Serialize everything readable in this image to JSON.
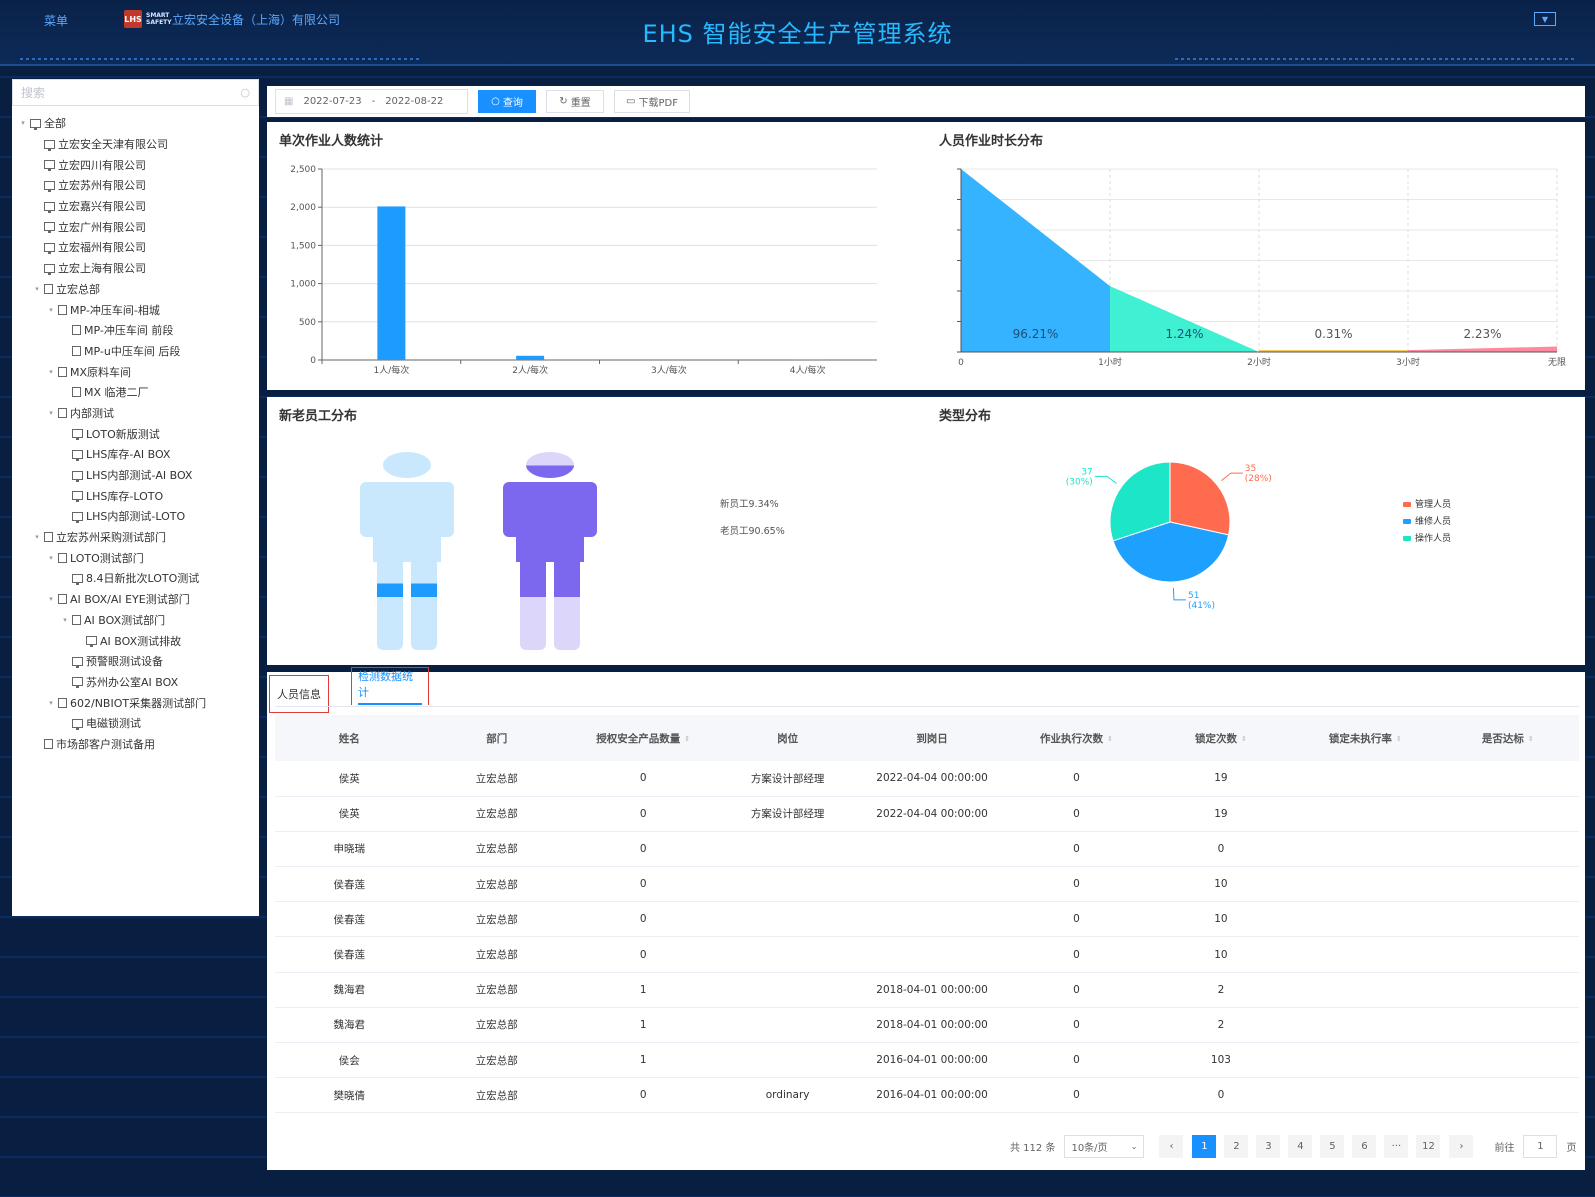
{
  "header": {
    "menu_label": "菜单",
    "company": "立宏安全设备（上海）有限公司",
    "title": "EHS 智能安全生产管理系统",
    "logo_mark": "LHS",
    "logo_text": "SMART SAFETY"
  },
  "sidebar": {
    "search_placeholder": "搜索",
    "tree": [
      {
        "label": "全部",
        "level": 0,
        "caret": "▾",
        "icon": "monitor"
      },
      {
        "label": "立宏安全天津有限公司",
        "level": 1,
        "caret": "",
        "icon": "monitor"
      },
      {
        "label": "立宏四川有限公司",
        "level": 1,
        "caret": "",
        "icon": "monitor"
      },
      {
        "label": "立宏苏州有限公司",
        "level": 1,
        "caret": "",
        "icon": "monitor"
      },
      {
        "label": "立宏嘉兴有限公司",
        "level": 1,
        "caret": "",
        "icon": "monitor"
      },
      {
        "label": "立宏广州有限公司",
        "level": 1,
        "caret": "",
        "icon": "monitor"
      },
      {
        "label": "立宏福州有限公司",
        "level": 1,
        "caret": "",
        "icon": "monitor"
      },
      {
        "label": "立宏上海有限公司",
        "level": 1,
        "caret": "",
        "icon": "monitor"
      },
      {
        "label": "立宏总部",
        "level": 1,
        "caret": "▾",
        "icon": "doc"
      },
      {
        "label": "MP-冲压车间-相城",
        "level": 2,
        "caret": "▾",
        "icon": "doc"
      },
      {
        "label": "MP-冲压车间 前段",
        "level": 3,
        "caret": "",
        "icon": "doc"
      },
      {
        "label": "MP-u中压车间 后段",
        "level": 3,
        "caret": "",
        "icon": "doc"
      },
      {
        "label": "MX原料车间",
        "level": 2,
        "caret": "▾",
        "icon": "doc"
      },
      {
        "label": "MX 临港二厂",
        "level": 3,
        "caret": "",
        "icon": "doc"
      },
      {
        "label": "内部测试",
        "level": 2,
        "caret": "▾",
        "icon": "doc"
      },
      {
        "label": "LOTO新版测试",
        "level": 3,
        "caret": "",
        "icon": "monitor"
      },
      {
        "label": "LHS库存-AI BOX",
        "level": 3,
        "caret": "",
        "icon": "monitor"
      },
      {
        "label": "LHS内部测试-AI BOX",
        "level": 3,
        "caret": "",
        "icon": "monitor"
      },
      {
        "label": "LHS库存-LOTO",
        "level": 3,
        "caret": "",
        "icon": "monitor"
      },
      {
        "label": "LHS内部测试-LOTO",
        "level": 3,
        "caret": "",
        "icon": "monitor"
      },
      {
        "label": "立宏苏州采购测试部门",
        "level": 1,
        "caret": "▾",
        "icon": "doc"
      },
      {
        "label": "LOTO测试部门",
        "level": 2,
        "caret": "▾",
        "icon": "doc"
      },
      {
        "label": "8.4日新批次LOTO测试",
        "level": 3,
        "caret": "",
        "icon": "monitor"
      },
      {
        "label": "AI BOX/AI EYE测试部门",
        "level": 2,
        "caret": "▾",
        "icon": "doc"
      },
      {
        "label": "AI BOX测试部门",
        "level": 3,
        "caret": "▾",
        "icon": "doc"
      },
      {
        "label": "AI BOX测试排故",
        "level": 4,
        "caret": "",
        "icon": "monitor"
      },
      {
        "label": "预警眼测试设备",
        "level": 3,
        "caret": "",
        "icon": "monitor"
      },
      {
        "label": "苏州办公室AI BOX",
        "level": 3,
        "caret": "",
        "icon": "monitor"
      },
      {
        "label": "602/NBIOT采集器测试部门",
        "level": 2,
        "caret": "▾",
        "icon": "doc"
      },
      {
        "label": "电磁锁测试",
        "level": 3,
        "caret": "",
        "icon": "monitor"
      },
      {
        "label": "市场部客户测试备用",
        "level": 1,
        "caret": "",
        "icon": "doc"
      }
    ]
  },
  "toolbar": {
    "date_start": "2022-07-23",
    "date_sep": "-",
    "date_end": "2022-08-22",
    "query_label": "查询",
    "reset_label": "重置",
    "pdf_label": "下载PDF"
  },
  "panels": {
    "single_job": "单次作业人数统计",
    "duration": "人员作业时长分布",
    "new_old": "新老员工分布",
    "type_dist": "类型分布"
  },
  "chart_data": [
    {
      "type": "bar",
      "title": "单次作业人数统计",
      "categories": [
        "1人/每次",
        "2人/每次",
        "3人/每次",
        "4人/每次"
      ],
      "values": [
        2010,
        55,
        8,
        2
      ],
      "ylim": [
        0,
        2500
      ],
      "yticks": [
        "0",
        "500",
        "1,000",
        "1,500",
        "2,000",
        "2,500"
      ],
      "color": "#1e9bff"
    },
    {
      "type": "area",
      "title": "人员作业时长分布",
      "categories": [
        "0",
        "1小时",
        "2小时",
        "3小时",
        "无限"
      ],
      "segments": [
        {
          "label": "96.21%",
          "from": 0,
          "to": 1,
          "start": 1.0,
          "end": 0.36,
          "color": "#35b3ff"
        },
        {
          "label": "1.24%",
          "from": 1,
          "to": 2,
          "start": 0.36,
          "end": 0.0,
          "color": "#3ff0d2"
        },
        {
          "label": "0.31%",
          "from": 2,
          "to": 3,
          "start": 0.01,
          "end": 0.01,
          "color": "#f5c342"
        },
        {
          "label": "2.23%",
          "from": 3,
          "to": 4,
          "start": 0.01,
          "end": 0.03,
          "color": "#ff8aa0"
        }
      ]
    },
    {
      "type": "pictorial",
      "title": "新老员工分布",
      "series": [
        {
          "name": "新员工",
          "label": "新员工9.34%",
          "value": 9.34,
          "color": "#1e9bff"
        },
        {
          "name": "老员工",
          "label": "老员工90.65%",
          "value": 90.65,
          "color": "#7b68ee"
        }
      ]
    },
    {
      "type": "pie",
      "title": "类型分布",
      "series": [
        {
          "name": "管理人员",
          "value": 35,
          "pct": "(28%)",
          "color": "#ff6b4f"
        },
        {
          "name": "维修人员",
          "value": 51,
          "pct": "(41%)",
          "color": "#1ea0ff"
        },
        {
          "name": "操作人员",
          "value": 37,
          "pct": "(30%)",
          "color": "#1de5c8"
        }
      ]
    }
  ],
  "tabs": [
    "人员信息",
    "检测数据统计"
  ],
  "table": {
    "columns": [
      "姓名",
      "部门",
      "授权安全产品数量",
      "岗位",
      "到岗日",
      "作业执行次数",
      "锁定次数",
      "锁定未执行率",
      "是否达标"
    ],
    "sortable": [
      false,
      false,
      true,
      false,
      false,
      true,
      true,
      true,
      true
    ],
    "rows": [
      [
        "侯英",
        "立宏总部",
        "0",
        "方案设计部经理",
        "2022-04-04 00:00:00",
        "0",
        "19",
        "",
        ""
      ],
      [
        "侯英",
        "立宏总部",
        "0",
        "方案设计部经理",
        "2022-04-04 00:00:00",
        "0",
        "19",
        "",
        ""
      ],
      [
        "申晓瑞",
        "立宏总部",
        "0",
        "",
        "",
        "0",
        "0",
        "",
        ""
      ],
      [
        "侯春莲",
        "立宏总部",
        "0",
        "",
        "",
        "0",
        "10",
        "",
        ""
      ],
      [
        "侯春莲",
        "立宏总部",
        "0",
        "",
        "",
        "0",
        "10",
        "",
        ""
      ],
      [
        "侯春莲",
        "立宏总部",
        "0",
        "",
        "",
        "0",
        "10",
        "",
        ""
      ],
      [
        "魏海君",
        "立宏总部",
        "1",
        "",
        "2018-04-01 00:00:00",
        "0",
        "2",
        "",
        ""
      ],
      [
        "魏海君",
        "立宏总部",
        "1",
        "",
        "2018-04-01 00:00:00",
        "0",
        "2",
        "",
        ""
      ],
      [
        "侯会",
        "立宏总部",
        "1",
        "",
        "2016-04-01 00:00:00",
        "0",
        "103",
        "",
        ""
      ],
      [
        "樊晓倩",
        "立宏总部",
        "0",
        "ordinary",
        "2016-04-01 00:00:00",
        "0",
        "0",
        "",
        ""
      ]
    ]
  },
  "pagination": {
    "total": "共 112 条",
    "page_size": "10条/页",
    "pages": [
      "1",
      "2",
      "3",
      "4",
      "5",
      "6",
      "···",
      "12"
    ],
    "current": "1",
    "goto_label": "前往",
    "goto_value": "1",
    "page_unit": "页"
  }
}
